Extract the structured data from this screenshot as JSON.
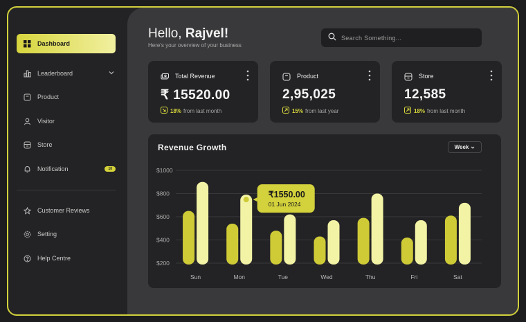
{
  "sidebar": {
    "items": [
      {
        "label": "Dashboard",
        "icon": "grid-icon",
        "active": true
      },
      {
        "label": "Leaderboard",
        "icon": "bar-chart-icon"
      },
      {
        "label": "Product",
        "icon": "box-icon"
      },
      {
        "label": "Visitor",
        "icon": "user-icon"
      },
      {
        "label": "Store",
        "icon": "store-icon"
      },
      {
        "label": "Notification",
        "icon": "bell-icon",
        "badge": "10"
      },
      {
        "label": "Customer Reviews",
        "icon": "star-icon"
      },
      {
        "label": "Setting",
        "icon": "gear-icon"
      },
      {
        "label": "Help Centre",
        "icon": "help-icon"
      }
    ]
  },
  "header": {
    "greeting": "Hello,",
    "user_name": "Rajvel!",
    "subtitle": "Here's your overview of your business",
    "search_placeholder": "Search Something..."
  },
  "cards": [
    {
      "title": "Total Revenue",
      "value": "₹ 15520.00",
      "change": "18%",
      "period": "from last month",
      "icon": "money-icon"
    },
    {
      "title": "Product",
      "value": "2,95,025",
      "change": "15%",
      "period": "from last year",
      "icon": "box-icon"
    },
    {
      "title": "Store",
      "value": "12,585",
      "change": "18%",
      "period": "from last month",
      "icon": "store-icon"
    }
  ],
  "revenue_chart": {
    "title": "Revenue Growth",
    "range_select": "Week",
    "tooltip": {
      "value": "₹1550.00",
      "date": "01 Jun 2024"
    }
  },
  "colors": {
    "accent": "#d3d13c",
    "accent_light": "#f3f3a6",
    "dark_bar": "#cfcb37"
  },
  "chart_data": {
    "type": "bar",
    "categories": [
      "Sun",
      "Mon",
      "Tue",
      "Wed",
      "Thu",
      "Fri",
      "Sat"
    ],
    "series": [
      {
        "values": [
          650,
          540,
          480,
          430,
          590,
          420,
          610
        ]
      },
      {
        "values": [
          900,
          790,
          620,
          570,
          800,
          570,
          720
        ]
      }
    ],
    "yticks": [
      "$1000",
      "$800",
      "$600",
      "$400",
      "$200"
    ],
    "ylim": [
      200,
      1000
    ],
    "grid": true
  }
}
